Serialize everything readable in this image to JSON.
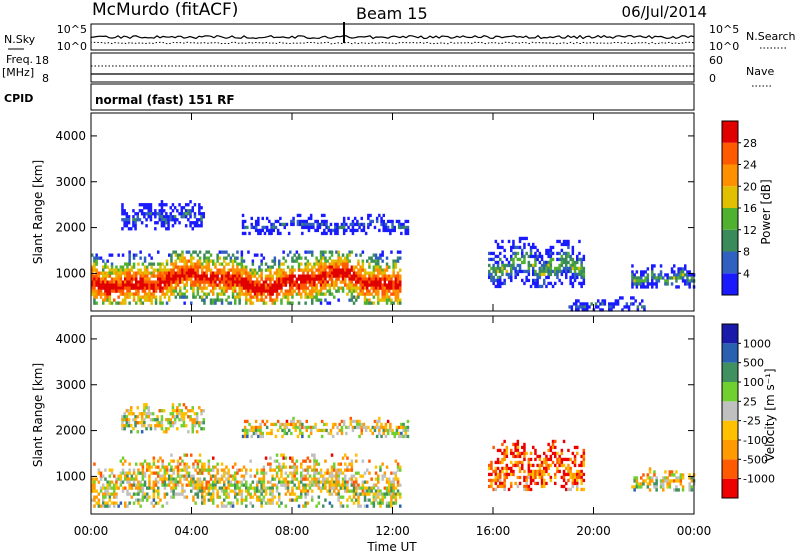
{
  "header": {
    "station": "McMurdo (fitACF)",
    "beam": "Beam 15",
    "date": "06/Jul/2014"
  },
  "top_panel": {
    "left_label": "N.Sky",
    "right_label": "N.Search",
    "y_ticks_left": [
      "10^5",
      "10^0"
    ],
    "y_ticks_right": [
      "10^5",
      "10^0"
    ]
  },
  "freq_panel": {
    "left_label_1": "Freq.",
    "left_label_2": "[MHz]",
    "right_label": "Nave",
    "y_ticks_left": [
      "18",
      "8"
    ],
    "y_ticks_right": [
      "60",
      "0"
    ]
  },
  "cpid": {
    "label": "CPID",
    "text": "normal (fast) 151 RF"
  },
  "x_axis": {
    "title": "Time UT",
    "ticks": [
      "00:00",
      "04:00",
      "08:00",
      "12:00",
      "16:00",
      "20:00",
      "00:00"
    ]
  },
  "colors": {
    "power": [
      "#1a1aff",
      "#3060c0",
      "#3a8a5a",
      "#50b030",
      "#e0c000",
      "#ff9000",
      "#ff5a00",
      "#e00000"
    ],
    "velocity": [
      "#ee0000",
      "#ff5a00",
      "#ff9a00",
      "#ffc000",
      "#c0c0c0",
      "#70d030",
      "#409060",
      "#2a60b0",
      "#1a1aaa"
    ]
  },
  "chart_data": [
    {
      "type": "heatmap",
      "ylabel": "Slant Range [km]",
      "xlabel": "",
      "ylim": [
        180,
        4500
      ],
      "xlim_hours": [
        0,
        24
      ],
      "y_ticks": [
        "1000",
        "2000",
        "3000",
        "4000"
      ],
      "colorbar": {
        "label": "Power [dB]",
        "ticks": [
          "4",
          "8",
          "12",
          "16",
          "20",
          "24",
          "28"
        ],
        "range": [
          0,
          32
        ]
      },
      "blobs": [
        {
          "t0": 0.0,
          "t1": 12.3,
          "rmin": 350,
          "rmax": 1500,
          "level": "high"
        },
        {
          "t0": 1.2,
          "t1": 4.5,
          "rmin": 2000,
          "rmax": 2600,
          "level": "low"
        },
        {
          "t0": 6.0,
          "t1": 12.6,
          "rmin": 1900,
          "rmax": 2300,
          "level": "low"
        },
        {
          "t0": 15.8,
          "t1": 19.6,
          "rmin": 700,
          "rmax": 1800,
          "level": "mid"
        },
        {
          "t0": 21.5,
          "t1": 24.0,
          "rmin": 700,
          "rmax": 1200,
          "level": "mid"
        },
        {
          "t0": 19.0,
          "t1": 22.0,
          "rmin": 200,
          "rmax": 500,
          "level": "low"
        }
      ]
    },
    {
      "type": "heatmap",
      "ylabel": "Slant Range [km]",
      "xlabel": "Time UT",
      "ylim": [
        180,
        4500
      ],
      "xlim_hours": [
        0,
        24
      ],
      "y_ticks": [
        "1000",
        "2000",
        "3000",
        "4000"
      ],
      "colorbar": {
        "label": "Velocity [m s⁻¹]",
        "ticks": [
          "1000",
          "500",
          "100",
          "25",
          "-25",
          "-100",
          "-500",
          "-1000"
        ],
        "range": [
          -1500,
          1500
        ]
      },
      "blobs": [
        {
          "t0": 0.0,
          "t1": 12.3,
          "rmin": 350,
          "rmax": 1500,
          "level": "mixed"
        },
        {
          "t0": 1.2,
          "t1": 4.5,
          "rmin": 2000,
          "rmax": 2600,
          "level": "mixed"
        },
        {
          "t0": 6.0,
          "t1": 12.6,
          "rmin": 1900,
          "rmax": 2300,
          "level": "mixed"
        },
        {
          "t0": 15.8,
          "t1": 19.6,
          "rmin": 700,
          "rmax": 1800,
          "level": "negative"
        },
        {
          "t0": 21.5,
          "t1": 24.0,
          "rmin": 700,
          "rmax": 1200,
          "level": "mixed"
        }
      ]
    }
  ]
}
